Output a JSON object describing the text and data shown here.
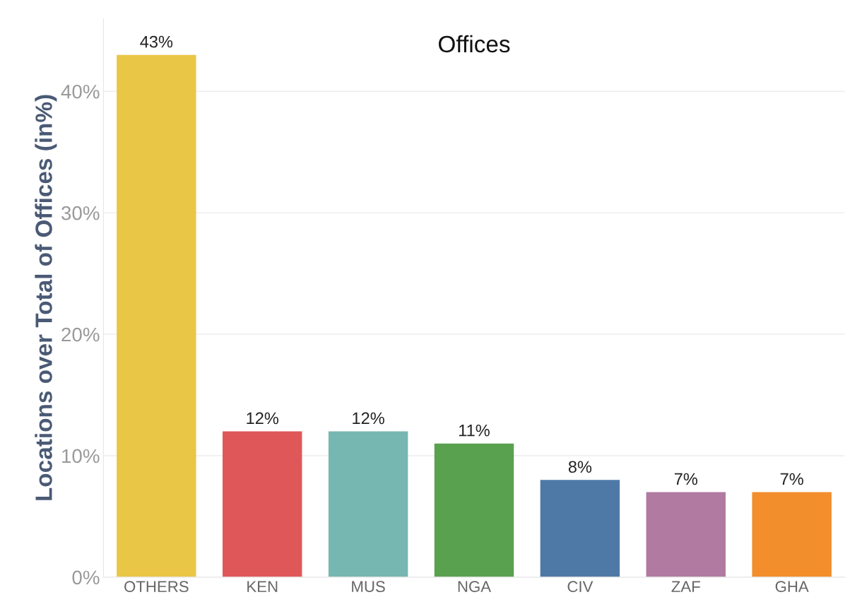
{
  "chart_data": {
    "type": "bar",
    "title": "Offices",
    "ylabel": "Locations over Total of Offices (in%)",
    "categories": [
      "OTHERS",
      "KEN",
      "MUS",
      "NGA",
      "CIV",
      "ZAF",
      "GHA"
    ],
    "values": [
      43,
      12,
      12,
      11,
      8,
      7,
      7
    ],
    "colors": [
      "#e9c646",
      "#e05759",
      "#76b7b2",
      "#59a14f",
      "#4e79a7",
      "#b07aa1",
      "#f28e2b"
    ],
    "value_labels": [
      "43%",
      "12%",
      "12%",
      "11%",
      "8%",
      "7%",
      "7%"
    ],
    "ylim": [
      0,
      46
    ],
    "yticks": [
      {
        "value": 0,
        "label": "0%"
      },
      {
        "value": 10,
        "label": "10%"
      },
      {
        "value": 20,
        "label": "20%"
      },
      {
        "value": 30,
        "label": "30%"
      },
      {
        "value": 40,
        "label": "40%"
      }
    ],
    "grid": "y"
  }
}
